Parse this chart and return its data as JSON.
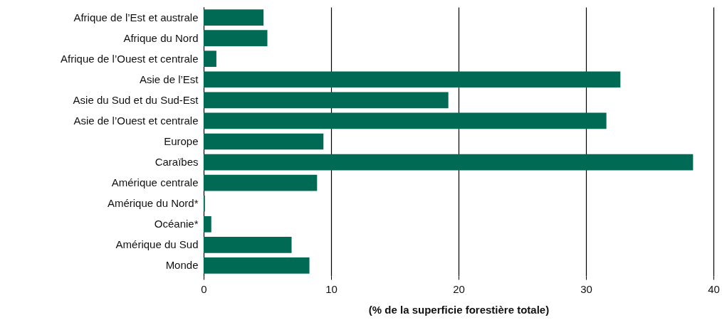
{
  "chart_data": {
    "type": "bar",
    "orientation": "horizontal",
    "xlabel": "(% de la superficie forestière totale)",
    "categories": [
      "Afrique de l’Est et australe",
      "Afrique du Nord",
      "Afrique de l’Ouest et centrale",
      "Asie de l’Est",
      "Asie du Sud et du Sud-Est",
      "Asie de l’Ouest et centrale",
      "Europe",
      "Caraïbes",
      "Amérique centrale",
      "Amérique du Nord*",
      "Océanie*",
      "Amérique du Sud",
      "Monde"
    ],
    "values": [
      4.7,
      5.0,
      1.0,
      32.7,
      19.2,
      31.6,
      9.4,
      38.4,
      8.9,
      0.1,
      0.6,
      6.9,
      8.3
    ],
    "color": "#006a55",
    "xlim": [
      0,
      40
    ],
    "xticks": [
      0,
      10,
      20,
      30,
      40
    ],
    "grid": "x"
  }
}
